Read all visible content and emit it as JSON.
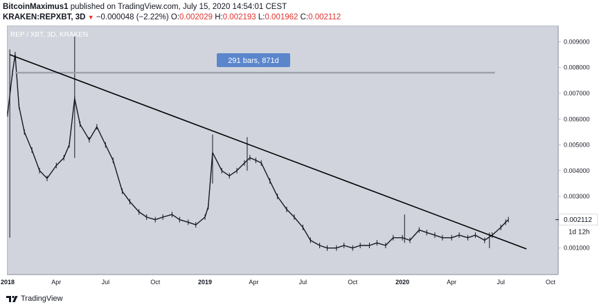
{
  "header": {
    "author": "BitcoinMaximus1",
    "published_text": " published on TradingView.com, July 15, 2020 14:54:01 CEST",
    "symbol": "KRAKEN:REPXBT, 3D",
    "arrow": "▼",
    "change": "−0.000048 (−2.22%)",
    "open_label": "O:",
    "open": "0.002029",
    "high_label": "H:",
    "high": "0.002193",
    "low_label": "L:",
    "low": "0.001962",
    "close_label": "C:",
    "close": "0.002112"
  },
  "footer": {
    "brand": "TradingView"
  },
  "colors": {
    "plot_bg": "#d1d4dc",
    "candle": "#131722",
    "trendline": "#000000",
    "range_line": "#9ea2ab",
    "badge_bg": "#5b86cc",
    "badge_text": "#ffffff",
    "price_tag_bg": "#ffffff",
    "negative": "#e0312d"
  },
  "chart_data": {
    "type": "line",
    "title": "REP / XBT, 3D, KRAKEN",
    "xlabel": "",
    "ylabel": "",
    "x_range": [
      "2018-01-01",
      "2020-10-15"
    ],
    "ylim": [
      0.0,
      0.0096
    ],
    "x_ticks": [
      "2018",
      "Apr",
      "Jul",
      "Oct",
      "2019",
      "Apr",
      "Jul",
      "Oct",
      "2020",
      "Apr",
      "Jul",
      "Oct"
    ],
    "y_ticks": [
      "0.001000",
      "0.002000",
      "0.003000",
      "0.004000",
      "0.005000",
      "0.006000",
      "0.007000",
      "0.008000",
      "0.009000"
    ],
    "grid": false,
    "legend": "none",
    "series": [
      {
        "name": "",
        "x": [
          "2018-01-01",
          "2018-01-10",
          "2018-01-15",
          "2018-01-22",
          "2018-02-01",
          "2018-02-15",
          "2018-03-01",
          "2018-03-15",
          "2018-04-01",
          "2018-04-15",
          "2018-04-25",
          "2018-05-05",
          "2018-05-15",
          "2018-06-01",
          "2018-06-15",
          "2018-07-01",
          "2018-07-15",
          "2018-08-01",
          "2018-08-15",
          "2018-09-01",
          "2018-09-15",
          "2018-10-01",
          "2018-10-15",
          "2018-11-01",
          "2018-11-15",
          "2018-12-01",
          "2018-12-15",
          "2019-01-01",
          "2019-01-07",
          "2019-01-15",
          "2019-02-01",
          "2019-02-15",
          "2019-03-01",
          "2019-03-15",
          "2019-03-25",
          "2019-04-05",
          "2019-04-15",
          "2019-05-01",
          "2019-05-15",
          "2019-06-01",
          "2019-06-15",
          "2019-07-01",
          "2019-07-15",
          "2019-08-01",
          "2019-08-15",
          "2019-09-01",
          "2019-09-15",
          "2019-10-01",
          "2019-10-15",
          "2019-11-01",
          "2019-11-15",
          "2019-12-01",
          "2019-12-15",
          "2020-01-01",
          "2020-01-15",
          "2020-02-01",
          "2020-02-15",
          "2020-03-01",
          "2020-03-15",
          "2020-04-01",
          "2020-04-15",
          "2020-05-01",
          "2020-05-15",
          "2020-06-01",
          "2020-06-15",
          "2020-07-01",
          "2020-07-10",
          "2020-07-15"
        ],
        "values": [
          0.0062,
          0.0078,
          0.0085,
          0.0065,
          0.0055,
          0.0048,
          0.004,
          0.0037,
          0.0042,
          0.0045,
          0.005,
          0.0068,
          0.0058,
          0.0052,
          0.0057,
          0.005,
          0.0044,
          0.0032,
          0.0028,
          0.0024,
          0.0022,
          0.0021,
          0.0022,
          0.0023,
          0.0021,
          0.002,
          0.0019,
          0.0022,
          0.0026,
          0.0047,
          0.004,
          0.0038,
          0.004,
          0.0043,
          0.0045,
          0.0044,
          0.0043,
          0.0036,
          0.003,
          0.0025,
          0.0022,
          0.0018,
          0.0013,
          0.0011,
          0.001,
          0.001,
          0.0011,
          0.001,
          0.0011,
          0.0011,
          0.0012,
          0.0011,
          0.0014,
          0.0014,
          0.0013,
          0.0017,
          0.0016,
          0.0015,
          0.0014,
          0.0014,
          0.0015,
          0.0014,
          0.0015,
          0.0013,
          0.0015,
          0.0018,
          0.002,
          0.0021
        ]
      }
    ],
    "wicks": [
      {
        "x": "2018-01-05",
        "high": 0.0087,
        "low": 0.0014
      },
      {
        "x": "2018-05-05",
        "high": 0.0092,
        "low": 0.0045
      },
      {
        "x": "2019-01-15",
        "high": 0.0054,
        "low": 0.0035
      },
      {
        "x": "2019-03-20",
        "high": 0.0053,
        "low": 0.004
      },
      {
        "x": "2020-01-05",
        "high": 0.0023,
        "low": 0.0012
      },
      {
        "x": "2020-06-10",
        "high": 0.0016,
        "low": 0.001
      }
    ],
    "trendline": {
      "x1": "2018-01-05",
      "y1": 0.0085,
      "x2": "2020-07-10",
      "y2": 0.0011
    },
    "range_line": {
      "x1": "2018-01-15",
      "x2": "2020-06-20",
      "y": 0.0078
    },
    "annotations": [
      {
        "text": "291 bars, 871d"
      },
      {
        "text": "0.002112"
      },
      {
        "text": "1d 12h"
      }
    ]
  }
}
